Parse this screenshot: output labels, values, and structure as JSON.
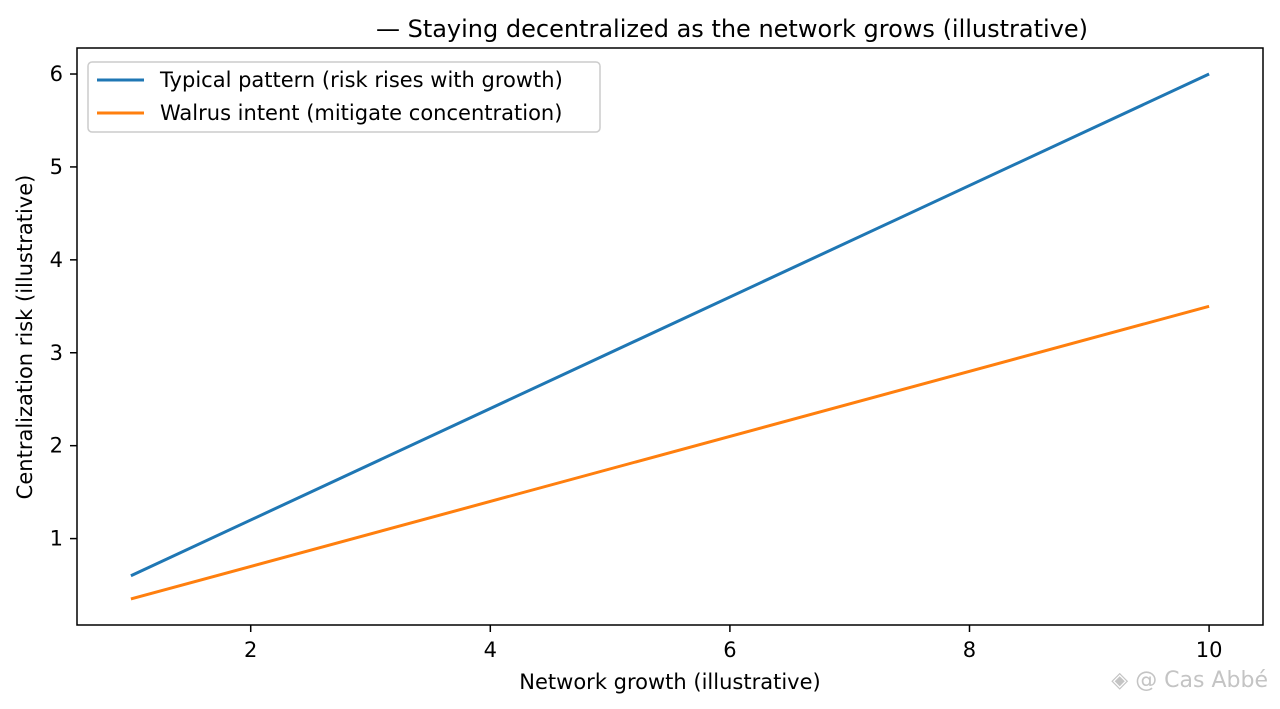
{
  "chart_data": {
    "type": "line",
    "title": "— Staying decentralized as the network grows (illustrative)",
    "xlabel": "Network growth (illustrative)",
    "ylabel": "Centralization risk (illustrative)",
    "xlim": [
      0.55,
      10.45
    ],
    "ylim": [
      0.07,
      6.28
    ],
    "xticks": [
      2,
      4,
      6,
      8,
      10
    ],
    "yticks": [
      1,
      2,
      3,
      4,
      5,
      6
    ],
    "grid": false,
    "legend_position": "top-left",
    "series": [
      {
        "name": "Typical pattern (risk rises with growth)",
        "color": "#1f77b4",
        "x": [
          1,
          10
        ],
        "y": [
          0.6,
          6.0
        ]
      },
      {
        "name": "Walrus intent (mitigate concentration)",
        "color": "#ff7f0e",
        "x": [
          1,
          10
        ],
        "y": [
          0.35,
          3.5
        ]
      }
    ]
  },
  "watermark": {
    "icon": "binance-logo-icon",
    "text": "@ Cas Abbé"
  }
}
